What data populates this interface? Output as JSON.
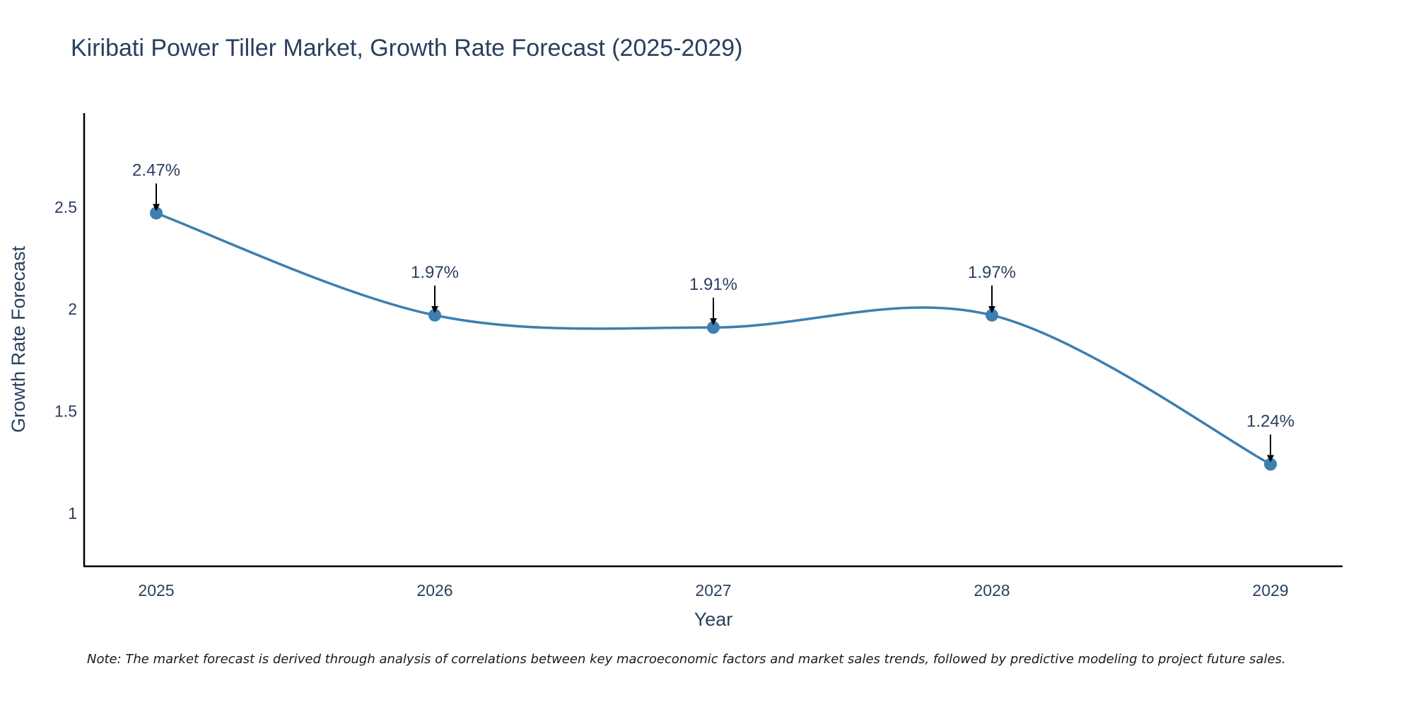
{
  "chart_data": {
    "type": "line",
    "title": "Kiribati Power Tiller Market, Growth Rate Forecast (2025-2029)",
    "xlabel": "Year",
    "ylabel": "Growth Rate Forecast",
    "categories": [
      "2025",
      "2026",
      "2027",
      "2028",
      "2029"
    ],
    "series": [
      {
        "name": "Growth Rate Forecast",
        "values": [
          2.47,
          1.97,
          1.91,
          1.97,
          1.24
        ],
        "labels": [
          "2.47%",
          "1.97%",
          "1.91%",
          "1.97%",
          "1.24%"
        ],
        "color": "#3d7fae"
      }
    ],
    "y_ticks": [
      1,
      1.5,
      2,
      2.5
    ],
    "y_tick_labels": [
      "1",
      "1.5",
      "2",
      "2.5"
    ],
    "ylim": [
      0.74,
      2.96
    ],
    "grid": false,
    "legend": "none",
    "line_shape": "spline",
    "annotation_arrows": true
  },
  "note": "Note: The market forecast is derived through analysis of correlations between key macroeconomic factors and market sales trends, followed by predictive modeling to project future sales."
}
